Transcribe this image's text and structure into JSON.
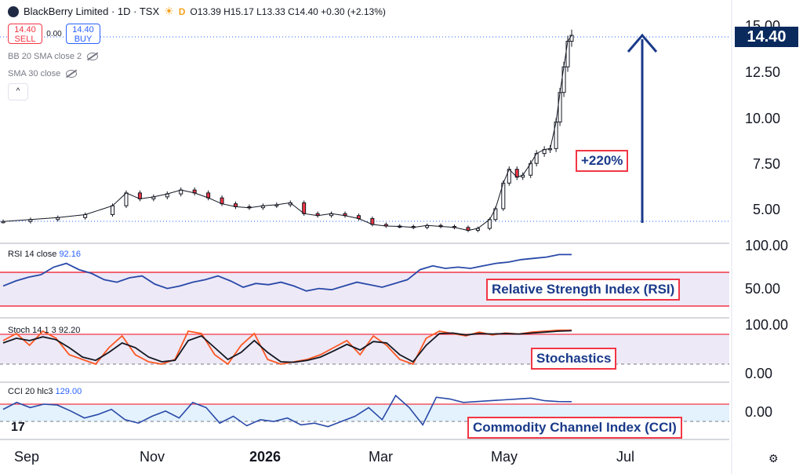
{
  "header": {
    "symbol": "BlackBerry Limited · 1D · TSX",
    "flag": "D",
    "ohlc": "O13.39 H15.17 L13.33 C14.40 +0.30 (+2.13%)"
  },
  "trade": {
    "sell_price": "14.40",
    "sell_label": "SELL",
    "spread": "0.00",
    "buy_price": "14.40",
    "buy_label": "BUY"
  },
  "indicators": {
    "bb_label": "BB 20 SMA close 2",
    "sma_label": "SMA 30 close",
    "collapse": "^"
  },
  "price_axis": {
    "labels": [
      "15.00",
      "12.50",
      "10.00",
      "7.50",
      "5.00"
    ],
    "last_price": "14.40"
  },
  "rsi_axis": {
    "labels": [
      "100.00",
      "50.00"
    ]
  },
  "stoch_axis": {
    "labels": [
      "100.00",
      "0.00"
    ]
  },
  "cci_axis": {
    "labels": [
      "0.00"
    ]
  },
  "x_axis": {
    "labels": [
      "Sep",
      "Nov",
      "2026",
      "Mar",
      "May",
      "Jul"
    ]
  },
  "annotations": {
    "gain": "+220%",
    "rsi": "Relative Strength Index (RSI)",
    "stoch": "Stochastics",
    "cci": "Commodity Channel Index (CCI)"
  },
  "panes": {
    "rsi_label": "RSI 14 close",
    "rsi_value": "92.16",
    "stoch_label": "Stoch 14 1 3",
    "stoch_value": "92.20",
    "cci_label": "CCI 20 hlc3",
    "cci_value": "129.00"
  },
  "footer": {
    "tv_logo": "17",
    "settings_icon": "⚙"
  },
  "colors": {
    "up": "#26a69a",
    "down": "#f23645",
    "candle_body": "#131722",
    "rsi_line": "#2949a8",
    "stoch_k": "#ff5722",
    "stoch_d": "#131722",
    "band": "#ede9f7",
    "callout_border": "#f23645",
    "arrow": "#1a3a8a"
  },
  "chart_data": [
    {
      "type": "line",
      "title": "BlackBerry Limited · 1D · TSX",
      "series_kind": "candlestick-close",
      "x_start": "2025-08-01",
      "x_end": "2026-05-19",
      "ylim": [
        3.5,
        15.5
      ],
      "points": [
        [
          "2025-08-01",
          4.95
        ],
        [
          "2025-08-15",
          5.05
        ],
        [
          "2025-08-29",
          5.15
        ],
        [
          "2025-09-12",
          5.3
        ],
        [
          "2025-09-26",
          5.75
        ],
        [
          "2025-10-03",
          6.4
        ],
        [
          "2025-10-10",
          6.1
        ],
        [
          "2025-10-17",
          6.2
        ],
        [
          "2025-10-24",
          6.35
        ],
        [
          "2025-10-31",
          6.55
        ],
        [
          "2025-11-07",
          6.4
        ],
        [
          "2025-11-14",
          6.15
        ],
        [
          "2025-11-21",
          5.85
        ],
        [
          "2025-11-28",
          5.7
        ],
        [
          "2025-12-05",
          5.65
        ],
        [
          "2025-12-12",
          5.75
        ],
        [
          "2025-12-19",
          5.8
        ],
        [
          "2025-12-26",
          5.9
        ],
        [
          "2026-01-02",
          5.35
        ],
        [
          "2026-01-09",
          5.25
        ],
        [
          "2026-01-16",
          5.35
        ],
        [
          "2026-01-23",
          5.25
        ],
        [
          "2026-01-30",
          5.1
        ],
        [
          "2026-02-06",
          4.8
        ],
        [
          "2026-02-13",
          4.72
        ],
        [
          "2026-02-20",
          4.7
        ],
        [
          "2026-02-27",
          4.65
        ],
        [
          "2026-03-06",
          4.75
        ],
        [
          "2026-03-13",
          4.7
        ],
        [
          "2026-03-20",
          4.65
        ],
        [
          "2026-03-27",
          4.5
        ],
        [
          "2026-04-01",
          4.6
        ],
        [
          "2026-04-07",
          5.05
        ],
        [
          "2026-04-10",
          5.6
        ],
        [
          "2026-04-14",
          6.9
        ],
        [
          "2026-04-17",
          7.6
        ],
        [
          "2026-04-21",
          7.2
        ],
        [
          "2026-04-24",
          7.3
        ],
        [
          "2026-04-28",
          7.9
        ],
        [
          "2026-05-01",
          8.4
        ],
        [
          "2026-05-05",
          8.6
        ],
        [
          "2026-05-08",
          8.65
        ],
        [
          "2026-05-11",
          10.0
        ],
        [
          "2026-05-13",
          11.5
        ],
        [
          "2026-05-15",
          12.8
        ],
        [
          "2026-05-17",
          14.1
        ],
        [
          "2026-05-19",
          14.4
        ]
      ]
    },
    {
      "type": "line",
      "title": "RSI 14 close",
      "ylim": [
        0,
        100
      ],
      "levels": [
        70,
        30
      ],
      "values": [
        42,
        50,
        56,
        60,
        72,
        78,
        68,
        62,
        52,
        48,
        55,
        58,
        45,
        38,
        42,
        48,
        52,
        58,
        50,
        40,
        46,
        44,
        48,
        42,
        34,
        38,
        36,
        42,
        48,
        44,
        40,
        46,
        52,
        68,
        74,
        70,
        72,
        70,
        74,
        78,
        80,
        84,
        86,
        88,
        92,
        92
      ]
    },
    {
      "type": "line",
      "title": "Stoch 14 1 3",
      "ylim": [
        0,
        100
      ],
      "levels": [
        80,
        20
      ],
      "series": [
        {
          "name": "%K",
          "values": [
            70,
            85,
            60,
            90,
            75,
            40,
            30,
            20,
            55,
            80,
            40,
            25,
            20,
            30,
            90,
            85,
            40,
            20,
            60,
            85,
            30,
            20,
            25,
            30,
            40,
            55,
            70,
            40,
            80,
            60,
            30,
            20,
            75,
            90,
            85,
            80,
            88,
            82,
            86,
            84,
            88,
            90,
            92,
            92
          ]
        },
        {
          "name": "%D",
          "values": [
            65,
            75,
            70,
            78,
            72,
            55,
            35,
            28,
            45,
            65,
            55,
            35,
            25,
            28,
            70,
            80,
            55,
            30,
            45,
            70,
            45,
            25,
            24,
            28,
            35,
            48,
            62,
            50,
            68,
            65,
            40,
            25,
            60,
            85,
            86,
            82,
            85,
            84,
            85,
            84,
            86,
            88,
            90,
            91
          ]
        }
      ]
    },
    {
      "type": "line",
      "title": "CCI 20 hlc3",
      "levels": [
        100,
        -100
      ],
      "values": [
        40,
        120,
        60,
        100,
        90,
        20,
        -60,
        -20,
        40,
        -80,
        -120,
        -40,
        20,
        -60,
        120,
        60,
        -120,
        -40,
        -150,
        -80,
        -100,
        -60,
        -140,
        -120,
        -160,
        -100,
        -40,
        60,
        -80,
        200,
        60,
        -140,
        180,
        160,
        120,
        130,
        140,
        150,
        160,
        170,
        140,
        130,
        129
      ]
    }
  ]
}
